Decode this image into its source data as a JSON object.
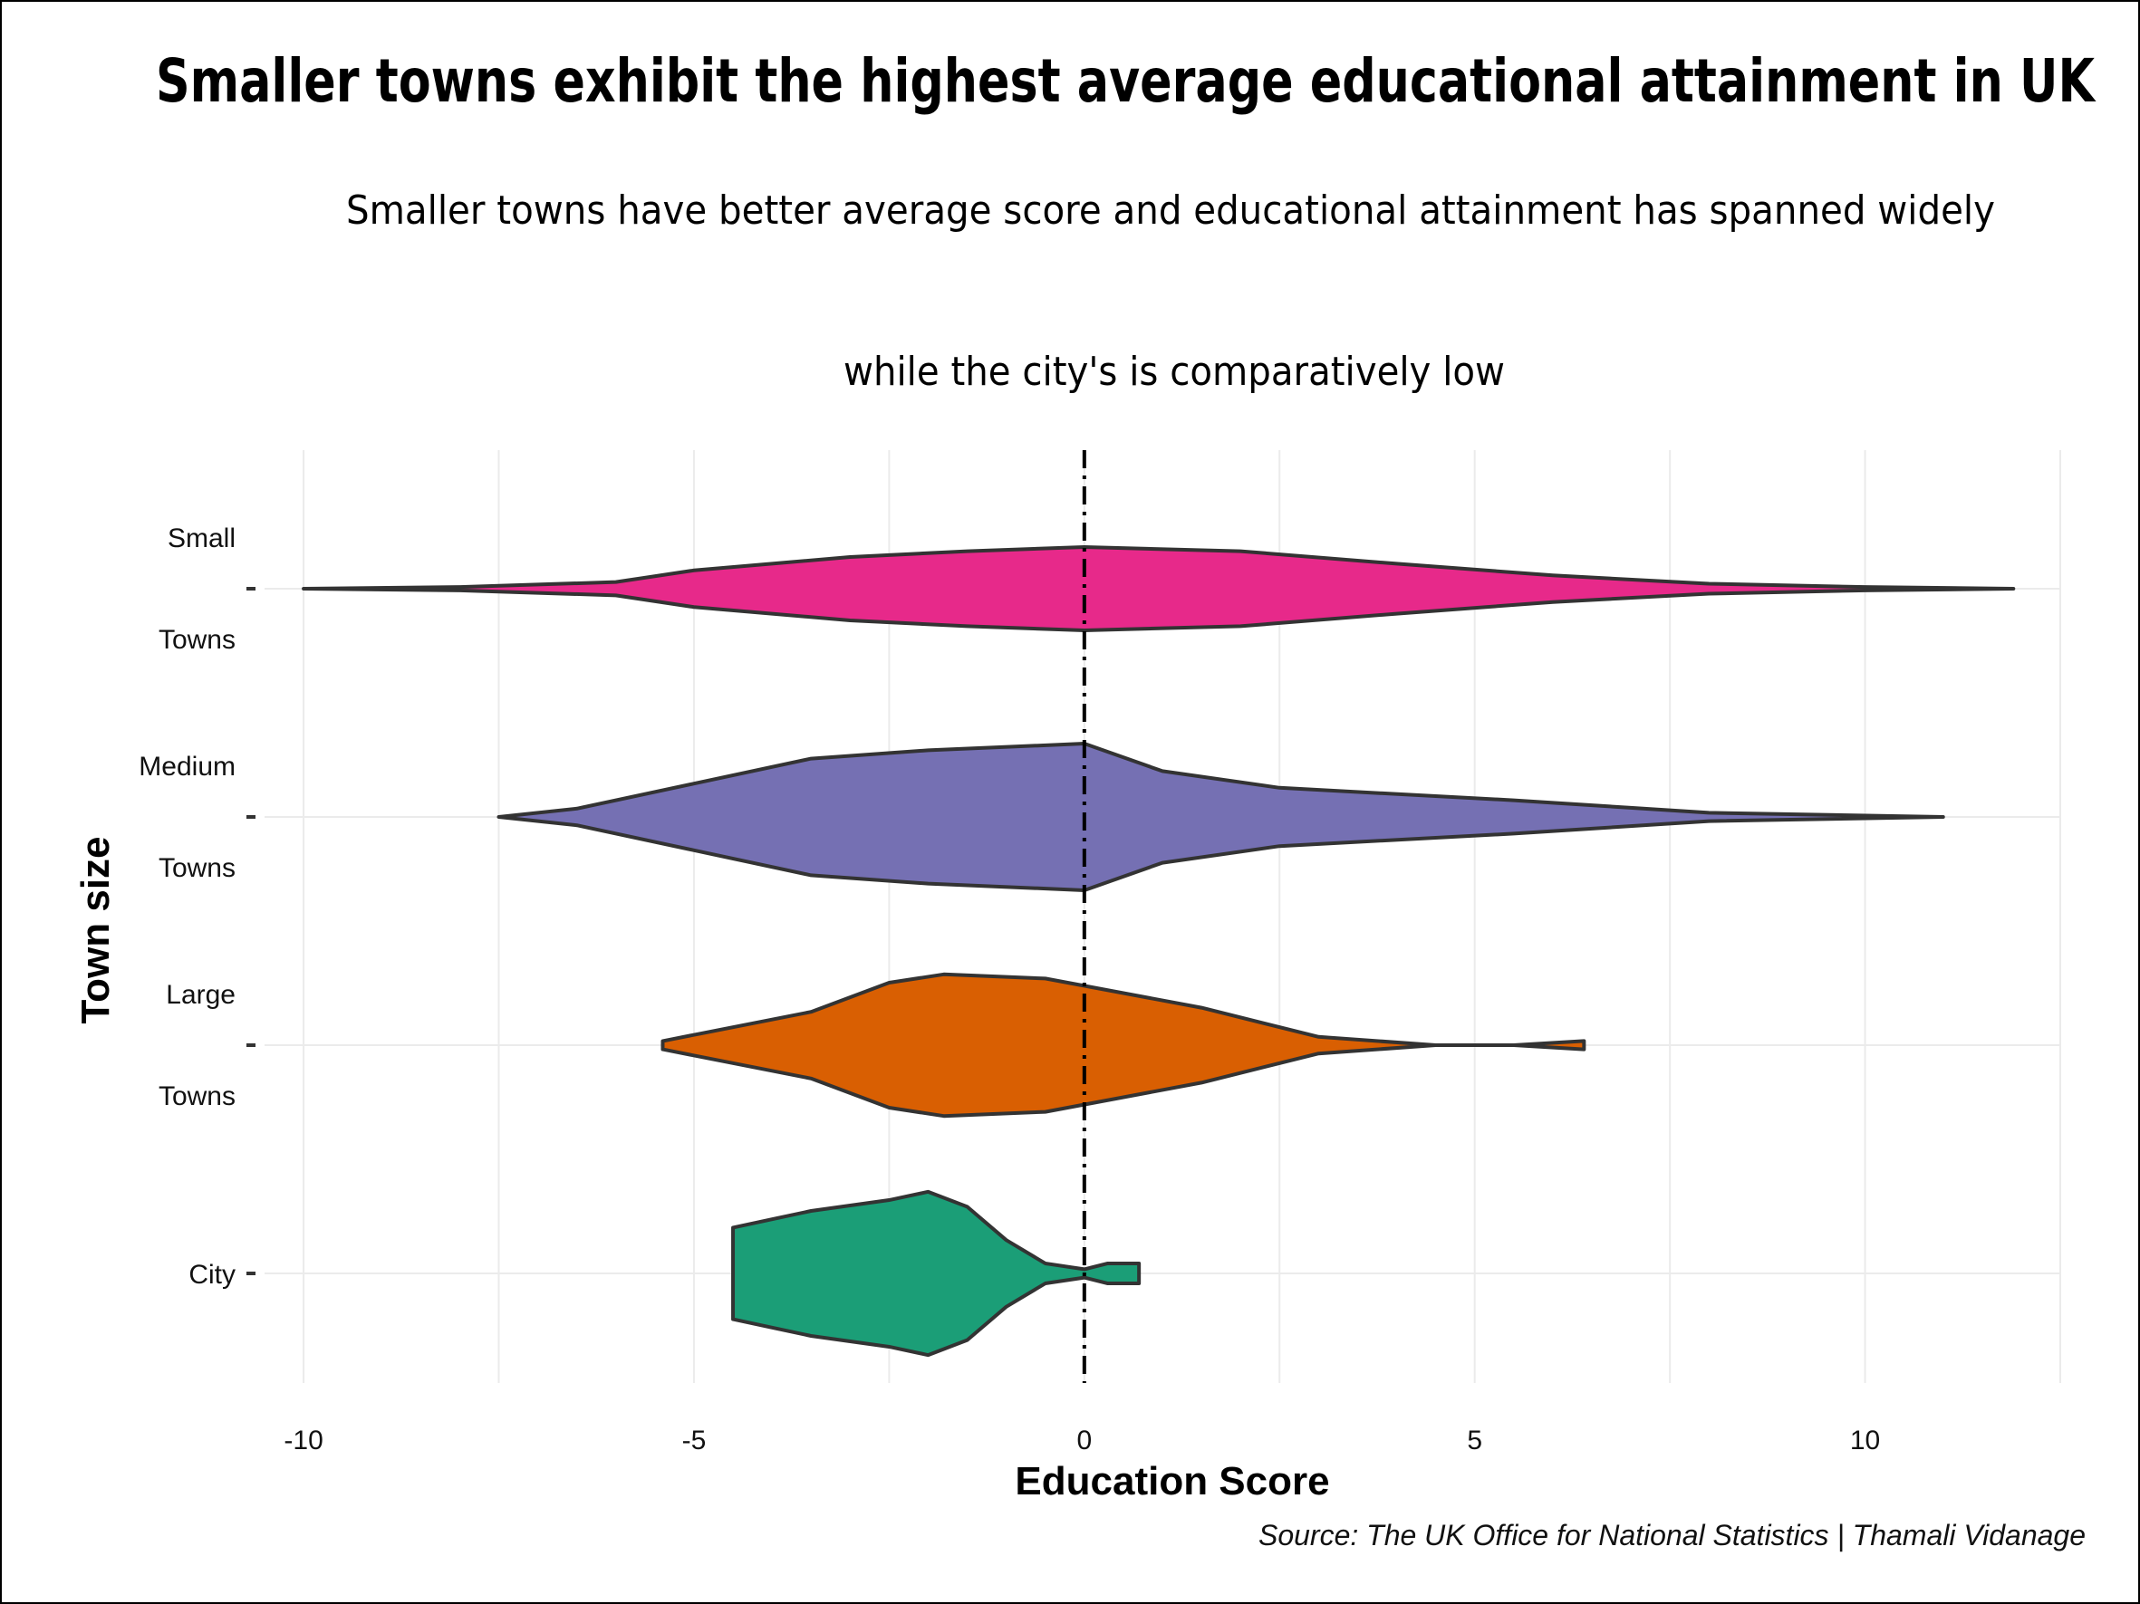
{
  "chart_data": {
    "type": "violin",
    "title": "Smaller towns exhibit the highest average educational attainment in UK",
    "subtitle_lines": [
      "Smaller towns have better average score and educational attainment has  spanned widely",
      "while the city's is comparatively low"
    ],
    "xlabel": "Education Score",
    "ylabel": "Town size",
    "caption": "Source: The UK Office for National Statistics | Thamali Vidanage",
    "xlim": [
      -10.5,
      12.5
    ],
    "xticks": [
      -10,
      -5,
      0,
      5,
      10
    ],
    "reference_line": 0,
    "categories": [
      {
        "label_lines": [
          "Small",
          "Towns"
        ],
        "color": "#e7298a",
        "min": -10.0,
        "max": 11.9,
        "density": [
          [
            -10.0,
            0.0
          ],
          [
            -8.0,
            0.02
          ],
          [
            -6.0,
            0.08
          ],
          [
            -5.0,
            0.22
          ],
          [
            -3.0,
            0.38
          ],
          [
            -1.5,
            0.45
          ],
          [
            0.0,
            0.5
          ],
          [
            2.0,
            0.45
          ],
          [
            4.0,
            0.3
          ],
          [
            6.0,
            0.16
          ],
          [
            8.0,
            0.06
          ],
          [
            10.0,
            0.02
          ],
          [
            11.9,
            0.0
          ]
        ]
      },
      {
        "label_lines": [
          "Medium",
          "Towns"
        ],
        "color": "#7570b3",
        "min": -7.5,
        "max": 11.0,
        "density": [
          [
            -7.5,
            0.0
          ],
          [
            -6.5,
            0.1
          ],
          [
            -5.0,
            0.4
          ],
          [
            -3.5,
            0.7
          ],
          [
            -2.0,
            0.8
          ],
          [
            0.0,
            0.88
          ],
          [
            1.0,
            0.55
          ],
          [
            2.5,
            0.35
          ],
          [
            5.5,
            0.2
          ],
          [
            8.0,
            0.05
          ],
          [
            11.0,
            0.0
          ]
        ]
      },
      {
        "label_lines": [
          "Large",
          "Towns"
        ],
        "color": "#d95f02",
        "min": -5.4,
        "max": 6.4,
        "density": [
          [
            -5.4,
            0.05
          ],
          [
            -3.5,
            0.4
          ],
          [
            -2.5,
            0.75
          ],
          [
            -1.8,
            0.85
          ],
          [
            -0.5,
            0.8
          ],
          [
            1.5,
            0.45
          ],
          [
            3.0,
            0.1
          ],
          [
            4.5,
            0.0
          ],
          [
            5.5,
            0.0
          ],
          [
            6.4,
            0.05
          ]
        ]
      },
      {
        "label_lines": [
          "City"
        ],
        "color": "#1b9e77",
        "min": -4.5,
        "max": 0.7,
        "density": [
          [
            -4.5,
            0.55
          ],
          [
            -4.0,
            0.65
          ],
          [
            -3.5,
            0.75
          ],
          [
            -2.5,
            0.88
          ],
          [
            -2.0,
            0.98
          ],
          [
            -1.5,
            0.8
          ],
          [
            -1.0,
            0.4
          ],
          [
            -0.5,
            0.12
          ],
          [
            0.0,
            0.05
          ],
          [
            0.3,
            0.12
          ],
          [
            0.7,
            0.12
          ]
        ]
      }
    ]
  }
}
